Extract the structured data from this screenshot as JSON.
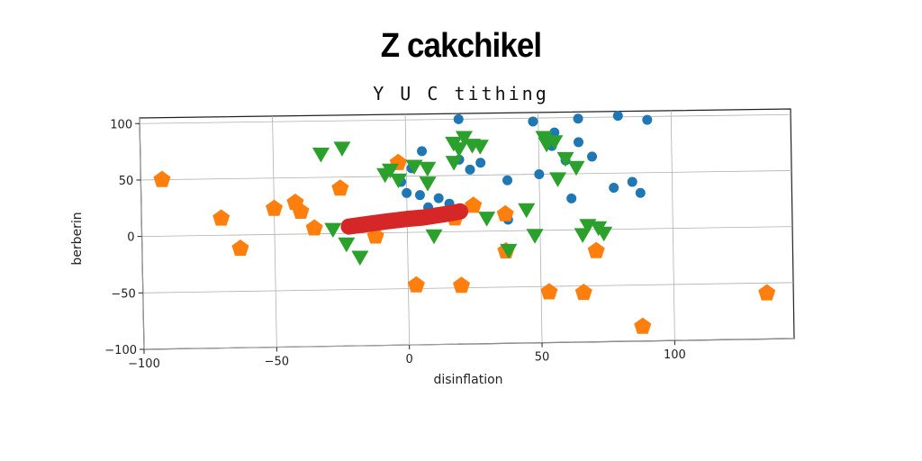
{
  "chart_data": {
    "type": "scatter",
    "title": "Z cakchikel",
    "subtitle": "Y U C tithing",
    "xlabel": "disinflation",
    "ylabel": "berberin",
    "xlim": [
      -100,
      145
    ],
    "ylim": [
      -100,
      105
    ],
    "xticks": [
      -100,
      -50,
      0,
      50,
      100
    ],
    "yticks": [
      -100,
      -50,
      0,
      50,
      100
    ],
    "grid": true,
    "colors": {
      "blue": "#1f77b4",
      "orange": "#ff7f0e",
      "green": "#2ca02c",
      "red": "#d62728"
    },
    "series": [
      {
        "marker": "circle",
        "color": "#1f77b4",
        "points": [
          [
            20,
            100
          ],
          [
            48,
            97
          ],
          [
            65,
            99
          ],
          [
            80,
            101
          ],
          [
            91,
            97
          ],
          [
            56,
            87
          ],
          [
            65,
            78
          ],
          [
            70,
            65
          ],
          [
            6,
            72
          ],
          [
            2,
            57
          ],
          [
            20,
            64
          ],
          [
            28,
            61
          ],
          [
            38,
            45
          ],
          [
            50,
            50
          ],
          [
            85,
            42
          ],
          [
            78,
            37
          ],
          [
            88,
            32
          ],
          [
            62,
            28
          ],
          [
            5,
            33
          ],
          [
            12,
            30
          ],
          [
            0,
            35
          ],
          [
            16,
            25
          ],
          [
            38,
            10
          ],
          [
            8,
            22
          ],
          [
            -2,
            45
          ],
          [
            55,
            75
          ],
          [
            24,
            55
          ],
          [
            60,
            62
          ]
        ]
      },
      {
        "marker": "pentagon",
        "color": "#ff7f0e",
        "points": [
          [
            -92,
            50
          ],
          [
            -70,
            15
          ],
          [
            -63,
            -12
          ],
          [
            -50,
            23
          ],
          [
            -42,
            28
          ],
          [
            -40,
            20
          ],
          [
            -35,
            5
          ],
          [
            -25,
            40
          ],
          [
            -12,
            -3
          ],
          [
            -3,
            62
          ],
          [
            3,
            -47
          ],
          [
            20,
            -48
          ],
          [
            25,
            23
          ],
          [
            37,
            -18
          ],
          [
            37,
            15
          ],
          [
            53,
            -55
          ],
          [
            66,
            -56
          ],
          [
            71,
            -19
          ],
          [
            88,
            -87
          ],
          [
            135,
            -59
          ],
          [
            18,
            12
          ]
        ]
      },
      {
        "marker": "triangle",
        "color": "#2ca02c",
        "points": [
          [
            -32,
            72
          ],
          [
            -24,
            77
          ],
          [
            -8,
            53
          ],
          [
            -3,
            48
          ],
          [
            -6,
            57
          ],
          [
            3,
            60
          ],
          [
            8,
            58
          ],
          [
            8,
            45
          ],
          [
            18,
            63
          ],
          [
            18,
            80
          ],
          [
            20,
            75
          ],
          [
            25,
            78
          ],
          [
            28,
            77
          ],
          [
            22,
            85
          ],
          [
            52,
            84
          ],
          [
            56,
            80
          ],
          [
            53,
            78
          ],
          [
            57,
            47
          ],
          [
            60,
            65
          ],
          [
            64,
            57
          ],
          [
            -28,
            5
          ],
          [
            -23,
            -8
          ],
          [
            -18,
            -20
          ],
          [
            10,
            -2
          ],
          [
            30,
            13
          ],
          [
            38,
            -16
          ],
          [
            45,
            20
          ],
          [
            48,
            -3
          ],
          [
            66,
            -3
          ],
          [
            68,
            5
          ],
          [
            72,
            3
          ],
          [
            74,
            -2
          ]
        ]
      },
      {
        "marker": "band",
        "color": "#d62728",
        "points": [
          [
            -22,
            6
          ],
          [
            -15,
            8
          ],
          [
            -8,
            10
          ],
          [
            0,
            12
          ],
          [
            6,
            13
          ],
          [
            12,
            15
          ],
          [
            18,
            17
          ],
          [
            20,
            18
          ]
        ]
      }
    ]
  }
}
